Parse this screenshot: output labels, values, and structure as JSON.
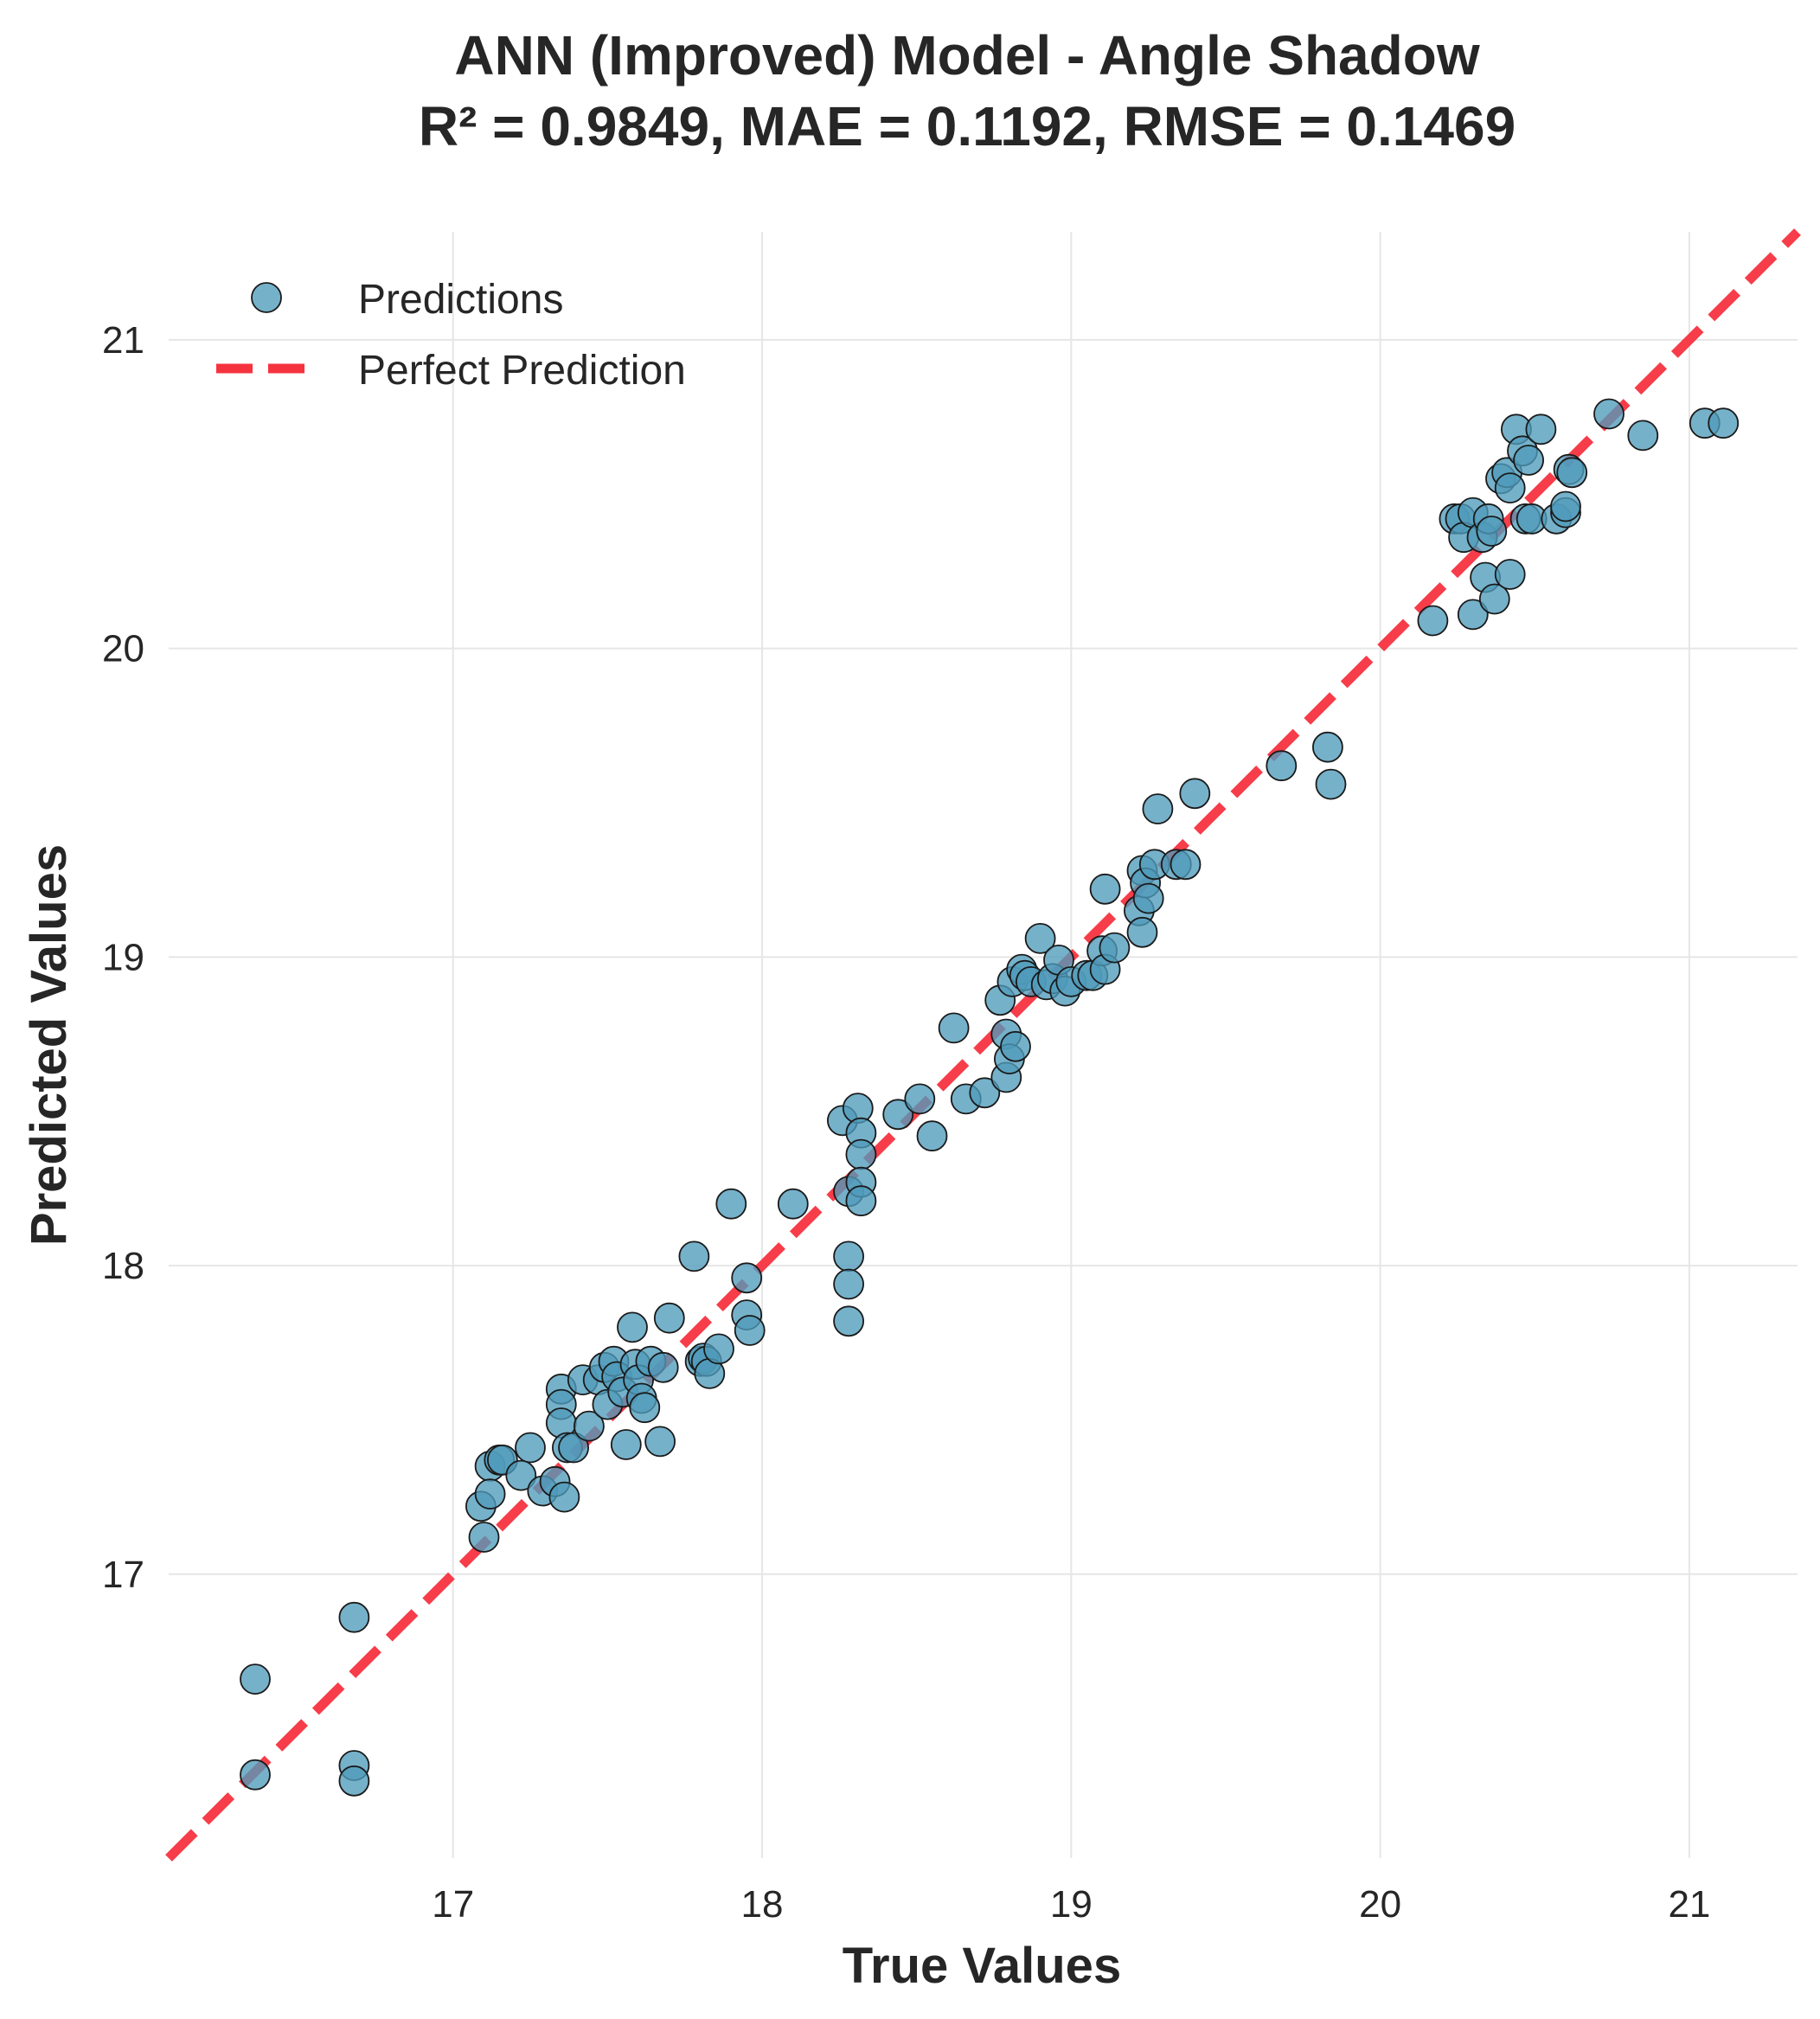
{
  "title_line1": "ANN (Improved) Model - Angle Shadow",
  "title_line2": "R² = 0.9849, MAE = 0.1192, RMSE = 0.1469",
  "colors": {
    "points": "#4f9bbb",
    "point_edge": "#1a1a1a",
    "perfect_line": "#f5333f",
    "grid": "#e6e6e6",
    "text": "#262626"
  },
  "chart_data": {
    "type": "scatter",
    "title": "ANN (Improved) Model - Angle Shadow\nR² = 0.9849, MAE = 0.1192, RMSE = 0.1469",
    "xlabel": "True Values",
    "ylabel": "Predicted Values",
    "xlim": [
      16.08,
      21.35
    ],
    "ylim": [
      16.08,
      21.35
    ],
    "xticks": [
      "17",
      "18",
      "19",
      "20",
      "21"
    ],
    "yticks": [
      "17",
      "18",
      "19",
      "20",
      "21"
    ],
    "grid": true,
    "legend": {
      "position": "top-left",
      "entries": [
        "Predictions",
        "Perfect Prediction"
      ]
    },
    "series": [
      {
        "name": "Predictions",
        "kind": "scatter",
        "points": [
          [
            16.36,
            16.66
          ],
          [
            16.36,
            16.35
          ],
          [
            16.68,
            16.86
          ],
          [
            16.68,
            16.38
          ],
          [
            16.68,
            16.33
          ],
          [
            17.09,
            17.22
          ],
          [
            17.1,
            17.12
          ],
          [
            17.12,
            17.35
          ],
          [
            17.12,
            17.26
          ],
          [
            17.15,
            17.37
          ],
          [
            17.16,
            17.37
          ],
          [
            17.22,
            17.32
          ],
          [
            17.25,
            17.41
          ],
          [
            17.29,
            17.27
          ],
          [
            17.33,
            17.3
          ],
          [
            17.35,
            17.6
          ],
          [
            17.35,
            17.55
          ],
          [
            17.35,
            17.49
          ],
          [
            17.36,
            17.25
          ],
          [
            17.37,
            17.41
          ],
          [
            17.39,
            17.41
          ],
          [
            17.42,
            17.63
          ],
          [
            17.44,
            17.48
          ],
          [
            17.47,
            17.63
          ],
          [
            17.49,
            17.67
          ],
          [
            17.5,
            17.55
          ],
          [
            17.52,
            17.69
          ],
          [
            17.53,
            17.64
          ],
          [
            17.55,
            17.59
          ],
          [
            17.56,
            17.42
          ],
          [
            17.58,
            17.8
          ],
          [
            17.59,
            17.68
          ],
          [
            17.6,
            17.63
          ],
          [
            17.61,
            17.57
          ],
          [
            17.62,
            17.54
          ],
          [
            17.64,
            17.69
          ],
          [
            17.67,
            17.43
          ],
          [
            17.68,
            17.67
          ],
          [
            17.7,
            17.83
          ],
          [
            17.78,
            18.03
          ],
          [
            17.8,
            17.69
          ],
          [
            17.81,
            17.7
          ],
          [
            17.82,
            17.69
          ],
          [
            17.83,
            17.65
          ],
          [
            17.86,
            17.73
          ],
          [
            17.9,
            18.2
          ],
          [
            17.95,
            17.96
          ],
          [
            17.95,
            17.84
          ],
          [
            17.96,
            17.79
          ],
          [
            18.1,
            18.2
          ],
          [
            18.26,
            18.47
          ],
          [
            18.28,
            18.24
          ],
          [
            18.28,
            18.03
          ],
          [
            18.28,
            17.94
          ],
          [
            18.28,
            17.82
          ],
          [
            18.31,
            18.51
          ],
          [
            18.32,
            18.43
          ],
          [
            18.32,
            18.36
          ],
          [
            18.32,
            18.27
          ],
          [
            18.32,
            18.21
          ],
          [
            18.44,
            18.49
          ],
          [
            18.51,
            18.54
          ],
          [
            18.55,
            18.42
          ],
          [
            18.62,
            18.77
          ],
          [
            18.66,
            18.54
          ],
          [
            18.72,
            18.56
          ],
          [
            18.77,
            18.86
          ],
          [
            18.79,
            18.75
          ],
          [
            18.79,
            18.61
          ],
          [
            18.8,
            18.67
          ],
          [
            18.81,
            18.92
          ],
          [
            18.82,
            18.71
          ],
          [
            18.84,
            18.96
          ],
          [
            18.85,
            18.94
          ],
          [
            18.87,
            18.92
          ],
          [
            18.9,
            19.06
          ],
          [
            18.92,
            18.91
          ],
          [
            18.94,
            18.93
          ],
          [
            18.96,
            18.99
          ],
          [
            18.98,
            18.89
          ],
          [
            19.0,
            18.92
          ],
          [
            19.05,
            18.94
          ],
          [
            19.07,
            18.94
          ],
          [
            19.1,
            19.02
          ],
          [
            19.11,
            18.96
          ],
          [
            19.11,
            19.22
          ],
          [
            19.14,
            19.03
          ],
          [
            19.22,
            19.15
          ],
          [
            19.23,
            19.28
          ],
          [
            19.23,
            19.08
          ],
          [
            19.24,
            19.24
          ],
          [
            19.25,
            19.19
          ],
          [
            19.27,
            19.3
          ],
          [
            19.28,
            19.48
          ],
          [
            19.34,
            19.3
          ],
          [
            19.37,
            19.3
          ],
          [
            19.4,
            19.53
          ],
          [
            19.68,
            19.62
          ],
          [
            19.83,
            19.68
          ],
          [
            19.84,
            19.56
          ],
          [
            20.17,
            20.09
          ],
          [
            20.24,
            20.42
          ],
          [
            20.26,
            20.42
          ],
          [
            20.27,
            20.36
          ],
          [
            20.3,
            20.44
          ],
          [
            20.3,
            20.11
          ],
          [
            20.33,
            20.36
          ],
          [
            20.34,
            20.23
          ],
          [
            20.35,
            20.42
          ],
          [
            20.36,
            20.38
          ],
          [
            20.37,
            20.16
          ],
          [
            20.39,
            20.55
          ],
          [
            20.41,
            20.57
          ],
          [
            20.42,
            20.24
          ],
          [
            20.42,
            20.52
          ],
          [
            20.44,
            20.71
          ],
          [
            20.46,
            20.64
          ],
          [
            20.47,
            20.42
          ],
          [
            20.48,
            20.61
          ],
          [
            20.49,
            20.42
          ],
          [
            20.52,
            20.71
          ],
          [
            20.57,
            20.42
          ],
          [
            20.6,
            20.44
          ],
          [
            20.6,
            20.46
          ],
          [
            20.61,
            20.58
          ],
          [
            20.62,
            20.57
          ],
          [
            20.74,
            20.76
          ],
          [
            20.85,
            20.69
          ],
          [
            21.05,
            20.73
          ],
          [
            21.11,
            20.73
          ]
        ]
      },
      {
        "name": "Perfect Prediction",
        "kind": "line",
        "style": "dashed",
        "points": [
          [
            16.08,
            16.08
          ],
          [
            21.35,
            21.35
          ]
        ]
      }
    ]
  }
}
